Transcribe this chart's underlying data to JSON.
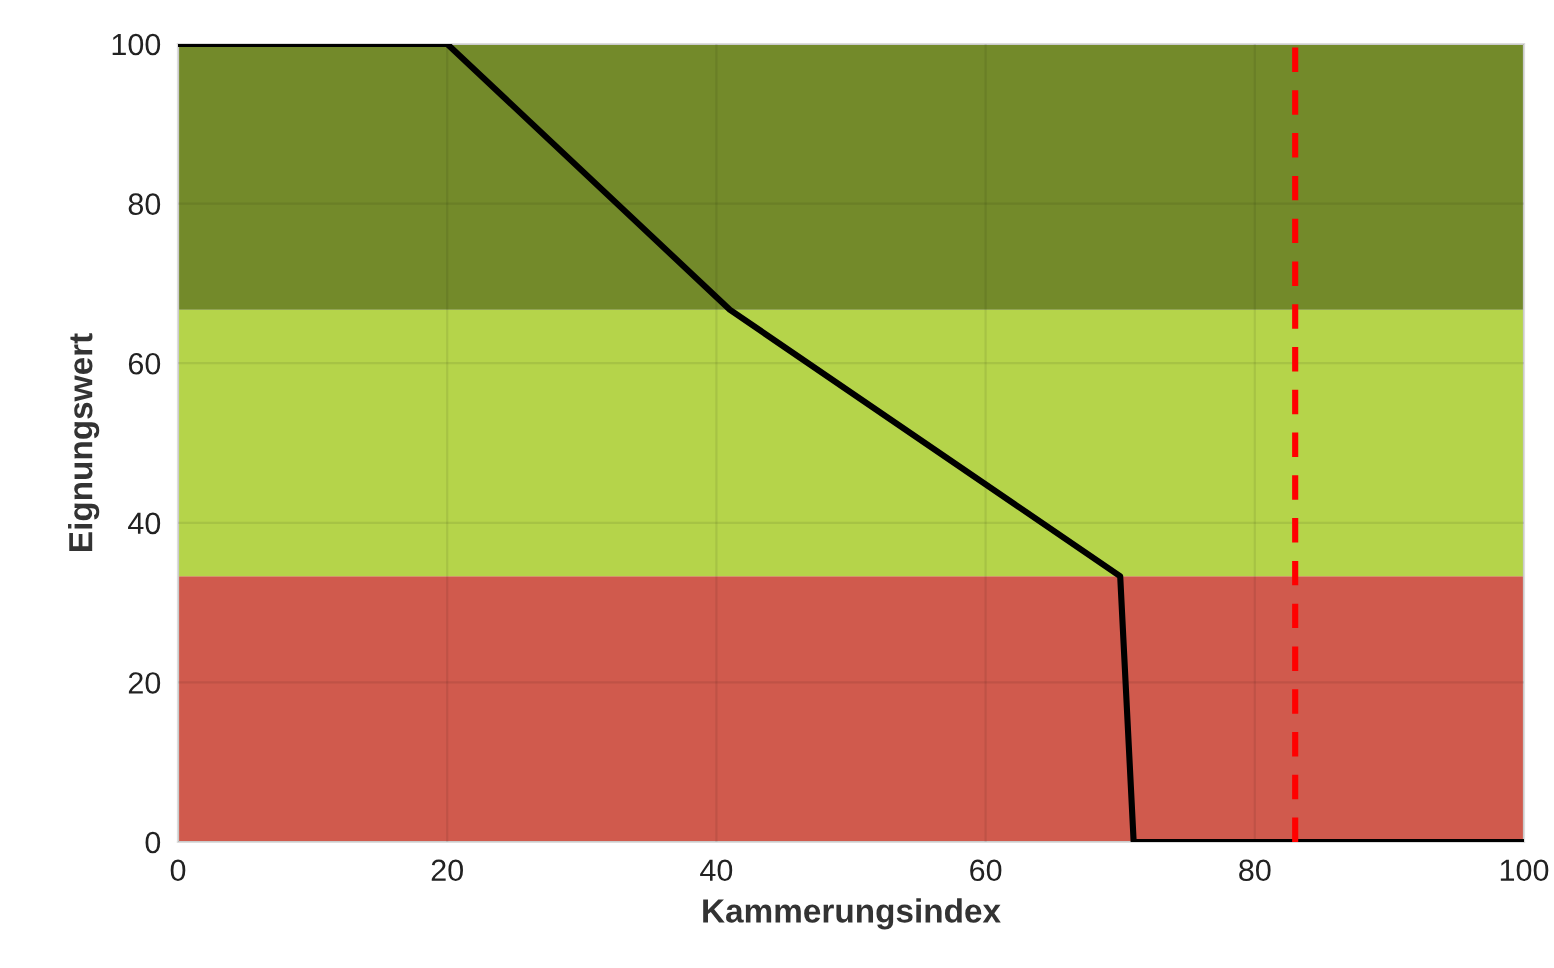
{
  "chart_data": {
    "type": "line",
    "xlabel": "Kammerungsindex",
    "ylabel": "Eignungswert",
    "x": [
      0,
      20,
      41,
      70,
      71,
      100
    ],
    "series": [
      {
        "color": "#000000",
        "values": [
          100,
          100,
          66.7,
          33.3,
          0,
          0
        ]
      }
    ],
    "xlim": [
      0,
      100
    ],
    "ylim": [
      0,
      100
    ],
    "xticks": [
      0,
      20,
      40,
      60,
      80,
      100
    ],
    "yticks": [
      0,
      20,
      40,
      60,
      80,
      100
    ],
    "bands": [
      {
        "axis": "y",
        "from": 0,
        "to": 33.3,
        "color": "#d05a4d"
      },
      {
        "axis": "y",
        "from": 33.3,
        "to": 66.7,
        "color": "#b5d44a"
      },
      {
        "axis": "y",
        "from": 66.7,
        "to": 100,
        "color": "#738a2a"
      }
    ],
    "ref_lines": [
      {
        "axis": "x",
        "value": 83,
        "color": "#ff0000",
        "line_style": "dashed"
      }
    ],
    "grid": true,
    "marker": "none",
    "line_style": "solid",
    "legend": false
  }
}
